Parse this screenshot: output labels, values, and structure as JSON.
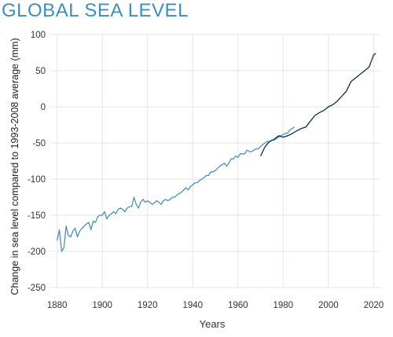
{
  "title": "GLOBAL SEA LEVEL",
  "colors": {
    "title": "#3a8fc2",
    "series_1": "#4a90bd",
    "series_2": "#0d2c4a",
    "grid": "#e6e6e6"
  },
  "chart_data": {
    "type": "line",
    "title": "GLOBAL SEA LEVEL",
    "xlabel": "Years",
    "ylabel": "Change in sea level compared to 1993-2008 average (mm)",
    "xlim": [
      1877,
      2023
    ],
    "ylim": [
      -250,
      100
    ],
    "x_ticks": [
      1880,
      1900,
      1920,
      1940,
      1960,
      1980,
      2000,
      2020
    ],
    "y_ticks": [
      100,
      50,
      0,
      -50,
      -100,
      -150,
      -200,
      -250
    ],
    "grid": true,
    "legend": "none",
    "series": [
      {
        "color": "#4a90bd",
        "x": [
          1880,
          1881,
          1882,
          1883,
          1884,
          1885,
          1886,
          1887,
          1888,
          1889,
          1890,
          1891,
          1892,
          1893,
          1894,
          1895,
          1896,
          1897,
          1898,
          1899,
          1900,
          1901,
          1902,
          1903,
          1904,
          1905,
          1906,
          1907,
          1908,
          1909,
          1910,
          1911,
          1912,
          1913,
          1914,
          1915,
          1916,
          1917,
          1918,
          1919,
          1920,
          1921,
          1922,
          1923,
          1924,
          1925,
          1926,
          1927,
          1928,
          1929,
          1930,
          1931,
          1932,
          1933,
          1934,
          1935,
          1936,
          1937,
          1938,
          1939,
          1940,
          1941,
          1942,
          1943,
          1944,
          1945,
          1946,
          1947,
          1948,
          1949,
          1950,
          1951,
          1952,
          1953,
          1954,
          1955,
          1956,
          1957,
          1958,
          1959,
          1960,
          1961,
          1962,
          1963,
          1964,
          1965,
          1966,
          1967,
          1968,
          1969,
          1970,
          1971,
          1972,
          1973,
          1974,
          1975,
          1976,
          1977,
          1978,
          1979,
          1980,
          1981,
          1982,
          1983,
          1984,
          1985
        ],
        "y": [
          -185,
          -170,
          -200,
          -195,
          -165,
          -178,
          -180,
          -172,
          -168,
          -180,
          -172,
          -168,
          -165,
          -162,
          -160,
          -170,
          -158,
          -160,
          -152,
          -150,
          -150,
          -145,
          -155,
          -150,
          -148,
          -145,
          -148,
          -142,
          -140,
          -142,
          -145,
          -140,
          -138,
          -138,
          -125,
          -135,
          -140,
          -132,
          -128,
          -132,
          -130,
          -132,
          -135,
          -133,
          -130,
          -132,
          -135,
          -130,
          -128,
          -130,
          -128,
          -125,
          -125,
          -122,
          -120,
          -118,
          -115,
          -112,
          -115,
          -110,
          -108,
          -105,
          -105,
          -102,
          -100,
          -98,
          -95,
          -95,
          -90,
          -90,
          -88,
          -85,
          -82,
          -80,
          -78,
          -82,
          -78,
          -72,
          -72,
          -68,
          -70,
          -65,
          -65,
          -65,
          -60,
          -62,
          -62,
          -60,
          -58,
          -58,
          -55,
          -52,
          -50,
          -48,
          -48,
          -46,
          -46,
          -44,
          -42,
          -40,
          -38,
          -37,
          -36,
          -32,
          -30,
          -28
        ]
      },
      {
        "color": "#0d2c4a",
        "x": [
          1970,
          1972,
          1974,
          1976,
          1978,
          1980,
          1982,
          1984,
          1986,
          1988,
          1990,
          1992,
          1994,
          1996,
          1998,
          2000,
          2002,
          2004,
          2006,
          2008,
          2010,
          2012,
          2014,
          2016,
          2018,
          2020,
          2021
        ],
        "y": [
          -68,
          -55,
          -48,
          -45,
          -40,
          -42,
          -40,
          -37,
          -33,
          -30,
          -28,
          -20,
          -12,
          -8,
          -5,
          0,
          3,
          8,
          15,
          22,
          35,
          40,
          45,
          50,
          55,
          72,
          74
        ]
      }
    ]
  }
}
